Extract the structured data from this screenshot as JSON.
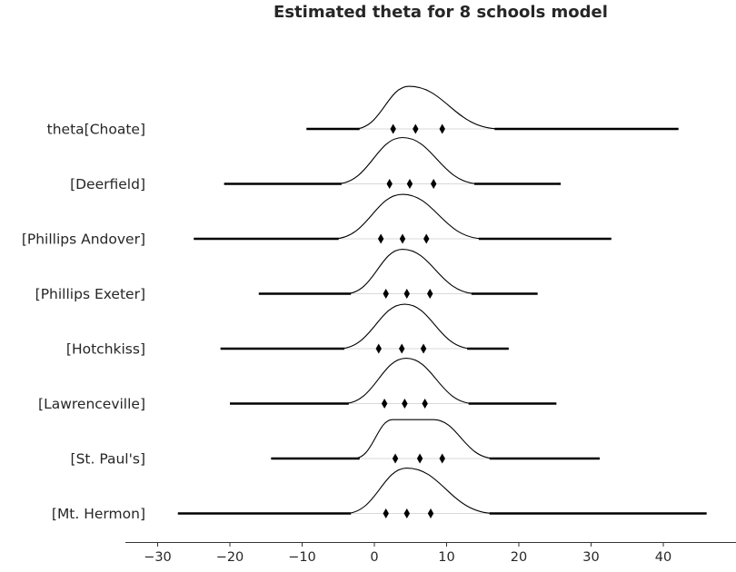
{
  "colors": {
    "ink": "#000000",
    "text": "#262626",
    "baseline_gray": "#d9d9d9",
    "spine": "#333333",
    "background": "#ffffff"
  },
  "chart_data": {
    "type": "ridgeline",
    "title": "Estimated theta for 8 schools model",
    "xlabel": "",
    "ylabel": "",
    "xlim": [
      -34.5,
      50
    ],
    "grid": false,
    "legend": "none",
    "marker_meaning": "quartiles (25%, 50%, 75%)",
    "x_ticks": [
      {
        "value": -30,
        "label": "−30"
      },
      {
        "value": -20,
        "label": "−20"
      },
      {
        "value": -10,
        "label": "−10"
      },
      {
        "value": 0,
        "label": "0"
      },
      {
        "value": 10,
        "label": "10"
      },
      {
        "value": 20,
        "label": "20"
      },
      {
        "value": 30,
        "label": "30"
      },
      {
        "value": 40,
        "label": "40"
      }
    ],
    "rows": [
      {
        "label": "theta[Choate]",
        "range": [
          -9.4,
          42.1
        ],
        "quartiles": [
          2.6,
          5.7,
          9.4
        ],
        "density": {
          "from": -2.8,
          "peak": 4.8,
          "to": 17.4,
          "height": 0.92,
          "flat_top": false
        }
      },
      {
        "label": "[Deerfield]",
        "range": [
          -20.8,
          25.8
        ],
        "quartiles": [
          2.1,
          4.9,
          8.2
        ],
        "density": {
          "from": -5.3,
          "peak": 3.9,
          "to": 14.6,
          "height": 1.0,
          "flat_top": false
        }
      },
      {
        "label": "[Phillips Andover]",
        "range": [
          -25.0,
          32.8
        ],
        "quartiles": [
          0.9,
          3.9,
          7.2
        ],
        "density": {
          "from": -5.7,
          "peak": 3.9,
          "to": 15.2,
          "height": 0.96,
          "flat_top": false
        }
      },
      {
        "label": "[Phillips Exeter]",
        "range": [
          -16.0,
          22.6
        ],
        "quartiles": [
          1.6,
          4.5,
          7.7
        ],
        "density": {
          "from": -4.0,
          "peak": 3.9,
          "to": 14.2,
          "height": 0.96,
          "flat_top": false
        }
      },
      {
        "label": "[Hotchkiss]",
        "range": [
          -21.3,
          18.6
        ],
        "quartiles": [
          0.6,
          3.8,
          6.8
        ],
        "density": {
          "from": -4.9,
          "peak": 4.2,
          "to": 13.6,
          "height": 0.96,
          "flat_top": false
        }
      },
      {
        "label": "[Lawrenceville]",
        "range": [
          -20.0,
          25.2
        ],
        "quartiles": [
          1.4,
          4.2,
          7.0
        ],
        "density": {
          "from": -4.3,
          "peak": 4.4,
          "to": 13.8,
          "height": 0.98,
          "flat_top": false
        }
      },
      {
        "label": "[St. Paul's]",
        "range": [
          -14.3,
          31.2
        ],
        "quartiles": [
          2.9,
          6.3,
          9.4
        ],
        "density": {
          "from": -2.8,
          "peak": 5.4,
          "to": 16.7,
          "height": 0.84,
          "flat_top": true,
          "plateau": [
            2.5,
            8.2
          ]
        }
      },
      {
        "label": "[Mt. Hermon]",
        "range": [
          -27.2,
          46.0
        ],
        "quartiles": [
          1.6,
          4.5,
          7.8
        ],
        "density": {
          "from": -4.0,
          "peak": 4.5,
          "to": 16.7,
          "height": 0.98,
          "flat_top": false
        }
      }
    ]
  }
}
